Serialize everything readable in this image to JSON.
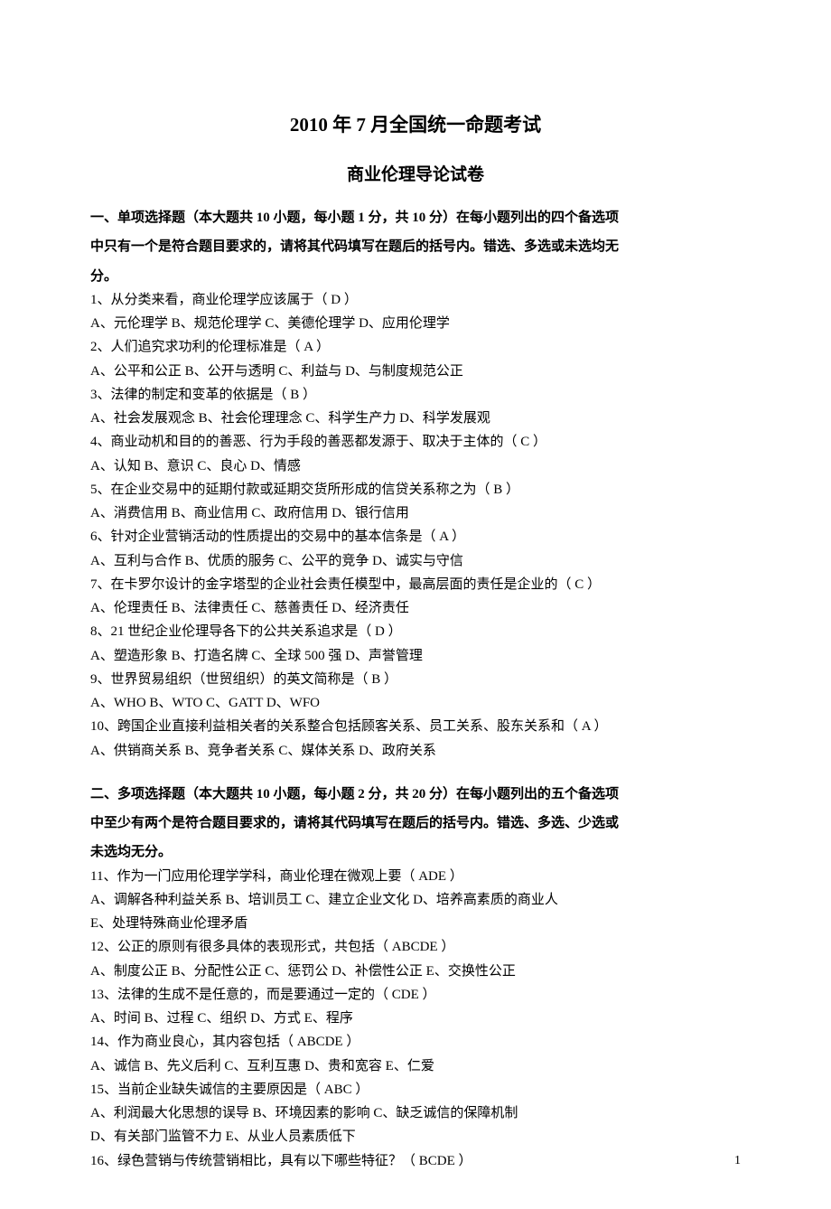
{
  "title_main": "2010 年 7 月全国统一命题考试",
  "title_sub": "商业伦理导论试卷",
  "section1_header1": "一、单项选择题（本大题共 10 小题，每小题 1 分，共 10 分）在每小题列出的四个备选项",
  "section1_header2": "中只有一个是符合题目要求的，请将其代码填写在题后的括号内。错选、多选或未选均无",
  "section1_header3": "分。",
  "q1": "1、从分类来看，商业伦理学应该属于（   D   ）",
  "q1_opts": "A、元伦理学    B、规范伦理学    C、美德伦理学      D、应用伦理学",
  "q2": "2、人们追究求功利的伦理标准是（   A    ）",
  "q2_opts": "A、公平和公正    B、公开与透明      C、利益与      D、与制度规范公正",
  "q3": "3、法律的制定和变革的依据是（   B    ）",
  "q3_opts": "A、社会发展观念    B、社会伦理理念      C、科学生产力      D、科学发展观",
  "q4": "4、商业动机和目的的善恶、行为手段的善恶都发源于、取决于主体的（    C    ）",
  "q4_opts": "A、认知     B、意识     C、良心      D、情感",
  "q5": "5、在企业交易中的延期付款或延期交货所形成的信贷关系称之为（   B    ）",
  "q5_opts": "A、消费信用     B、商业信用     C、政府信用      D、银行信用",
  "q6": "6、针对企业营销活动的性质提出的交易中的基本信条是（    A     ）",
  "q6_opts": "A、互利与合作     B、优质的服务     C、公平的竞争      D、诚实与守信",
  "q7": "7、在卡罗尔设计的金字塔型的企业社会责任模型中，最高层面的责任是企业的（   C    ）",
  "q7_opts": "A、伦理责任      B、法律责任       C、慈善责任        D、经济责任",
  "q8": "8、21 世纪企业伦理导各下的公共关系追求是（   D    ）",
  "q8_opts": "A、塑造形象      B、打造名牌       C、全球 500 强       D、声誉管理",
  "q9": "9、世界贸易组织（世贸组织）的英文简称是（   B    ）",
  "q9_opts": "A、WHO          B、WTO        C、GATT        D、WFO",
  "q10": "10、跨国企业直接利益相关者的关系整合包括顾客关系、员工关系、股东关系和（    A    ）",
  "q10_opts": "A、供销商关系      B、竞争者关系      C、媒体关系         D、政府关系",
  "section2_header1": "二、多项选择题（本大题共 10 小题，每小题 2 分，共 20 分）在每小题列出的五个备选项",
  "section2_header2": "中至少有两个是符合题目要求的，请将其代码填写在题后的括号内。错选、多选、少选或",
  "section2_header3": "未选均无分。",
  "q11": "11、作为一门应用伦理学学科，商业伦理在微观上要（   ADE   ）",
  "q11_opts1": "A、调解各种利益关系   B、培训员工    C、建立企业文化    D、培养高素质的商业人",
  "q11_opts2": "E、处理特殊商业伦理矛盾",
  "q12": "12、公正的原则有很多具体的表现形式，共包括（   ABCDE   ）",
  "q12_opts": "A、制度公正    B、分配性公正    C、惩罚公     D、补偿性公正     E、交换性公正",
  "q13": "13、法律的生成不是任意的，而是要通过一定的（   CDE   ）",
  "q13_opts": "A、时间     B、过程     C、组织      D、方式       E、程序",
  "q14": "14、作为商业良心，其内容包括（   ABCDE   ）",
  "q14_opts": "A、诚信     B、先义后利     C、互利互惠     D、贵和宽容     E、仁爱",
  "q15": "15、当前企业缺失诚信的主要原因是（    ABC   ）",
  "q15_opts1": "A、利润最大化思想的误导      B、环境因素的影响      C、缺乏诚信的保障机制",
  "q15_opts2": "D、有关部门监管不力            E、从业人员素质低下",
  "q16": "16、绿色营销与传统营销相比，具有以下哪些特征？（   BCDE   ）",
  "page_number": "1"
}
